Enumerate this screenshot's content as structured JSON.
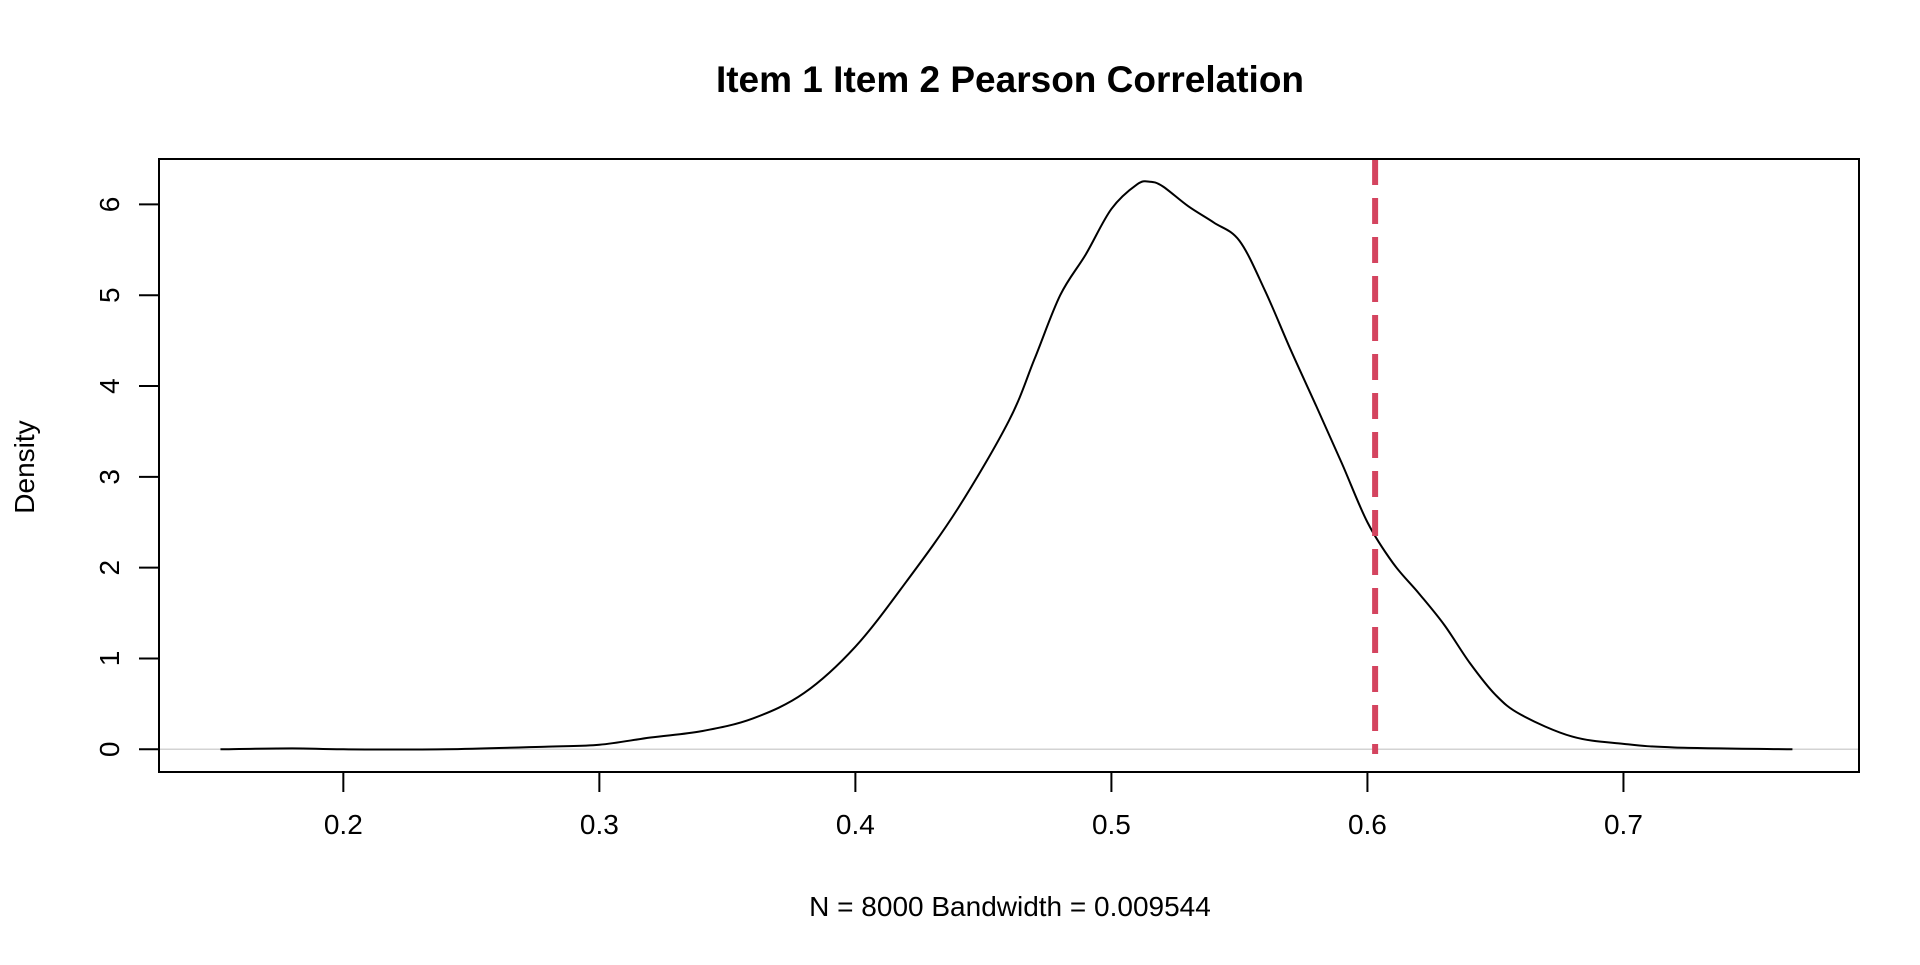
{
  "chart_data": {
    "type": "line",
    "title": "Item 1 Item 2 Pearson Correlation",
    "xlabel": "N = 8000   Bandwidth = 0.009544",
    "ylabel": "Density",
    "xlim": [
      0.128,
      0.792
    ],
    "ylim": [
      -0.25,
      6.5
    ],
    "x_ticks": [
      {
        "value": 0.2,
        "label": "0.2"
      },
      {
        "value": 0.3,
        "label": "0.3"
      },
      {
        "value": 0.4,
        "label": "0.4"
      },
      {
        "value": 0.5,
        "label": "0.5"
      },
      {
        "value": 0.6,
        "label": "0.6"
      },
      {
        "value": 0.7,
        "label": "0.7"
      }
    ],
    "y_ticks": [
      {
        "value": 0,
        "label": "0"
      },
      {
        "value": 1,
        "label": "1"
      },
      {
        "value": 2,
        "label": "2"
      },
      {
        "value": 3,
        "label": "3"
      },
      {
        "value": 4,
        "label": "4"
      },
      {
        "value": 5,
        "label": "5"
      },
      {
        "value": 6,
        "label": "6"
      }
    ],
    "grid": false,
    "series": [
      {
        "color": "#000000",
        "x": [
          0.152,
          0.18,
          0.2,
          0.24,
          0.28,
          0.3,
          0.32,
          0.34,
          0.36,
          0.38,
          0.4,
          0.42,
          0.44,
          0.46,
          0.47,
          0.48,
          0.49,
          0.5,
          0.51,
          0.515,
          0.52,
          0.53,
          0.54,
          0.55,
          0.56,
          0.57,
          0.58,
          0.59,
          0.6,
          0.61,
          0.62,
          0.63,
          0.64,
          0.65,
          0.66,
          0.68,
          0.7,
          0.72,
          0.766
        ],
        "y": [
          0.0,
          0.01,
          0.0,
          0.0,
          0.03,
          0.05,
          0.13,
          0.2,
          0.34,
          0.62,
          1.13,
          1.85,
          2.65,
          3.62,
          4.3,
          5.0,
          5.45,
          5.95,
          6.22,
          6.25,
          6.2,
          5.98,
          5.8,
          5.6,
          5.05,
          4.4,
          3.78,
          3.15,
          2.5,
          2.05,
          1.72,
          1.37,
          0.95,
          0.6,
          0.38,
          0.14,
          0.06,
          0.02,
          0.0
        ]
      }
    ],
    "baseline": {
      "y": 0,
      "color": "#d3d3d3"
    },
    "reference_line": {
      "x": 0.603,
      "color": "#d4445f",
      "style": "dashed"
    }
  }
}
